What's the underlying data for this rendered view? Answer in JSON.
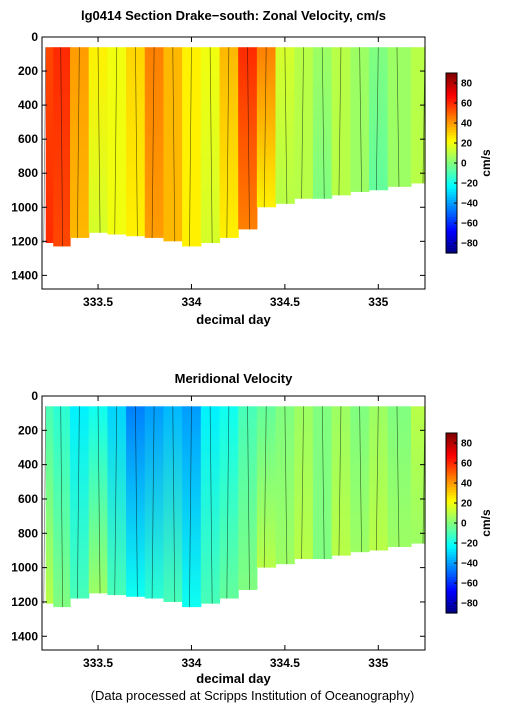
{
  "chart_data": [
    {
      "type": "heatmap",
      "title": "lg0414 Section Drake−south: Zonal Velocity, cm/s",
      "xlabel": "decimal day",
      "ylabel": "",
      "x_range": [
        333.2,
        335.25
      ],
      "y_range": [
        0,
        1480
      ],
      "y_reversed": true,
      "xticks": [
        "333.5",
        "334",
        "334.5",
        "335"
      ],
      "xtick_values": [
        333.5,
        334,
        334.5,
        335
      ],
      "yticks": [
        "0",
        "200",
        "400",
        "600",
        "800",
        "1000",
        "1200",
        "1400"
      ],
      "ytick_values": [
        0,
        200,
        400,
        600,
        800,
        1000,
        1200,
        1400
      ],
      "colorbar": {
        "label": "cm/s",
        "range": [
          -90,
          90
        ],
        "ticks": [
          "80",
          "60",
          "40",
          "20",
          "0",
          "−20",
          "−40",
          "−60",
          "−80"
        ],
        "tick_values": [
          80,
          60,
          40,
          20,
          0,
          -20,
          -40,
          -60,
          -80
        ]
      },
      "profiles_x": [
        333.22,
        333.3,
        333.4,
        333.5,
        333.6,
        333.7,
        333.8,
        333.9,
        334.0,
        334.1,
        334.2,
        334.3,
        334.4,
        334.5,
        334.6,
        334.7,
        334.8,
        334.9,
        335.0,
        335.1,
        335.25
      ],
      "bottom_depth": [
        1210,
        1230,
        1180,
        1150,
        1160,
        1170,
        1180,
        1200,
        1230,
        1210,
        1180,
        1130,
        1000,
        980,
        950,
        950,
        930,
        910,
        900,
        880,
        860
      ],
      "values_100m": [
        55,
        60,
        40,
        25,
        20,
        30,
        45,
        35,
        25,
        20,
        35,
        60,
        45,
        15,
        10,
        5,
        10,
        5,
        0,
        5,
        10
      ],
      "values_1000m": [
        60,
        55,
        35,
        15,
        20,
        25,
        40,
        35,
        25,
        15,
        25,
        45,
        25,
        10,
        10,
        0,
        10,
        5,
        -5,
        5,
        10
      ]
    },
    {
      "type": "heatmap",
      "title": "Meridional Velocity",
      "xlabel": "decimal day",
      "ylabel": "",
      "x_range": [
        333.2,
        335.25
      ],
      "y_range": [
        0,
        1480
      ],
      "y_reversed": true,
      "xticks": [
        "333.5",
        "334",
        "334.5",
        "335"
      ],
      "xtick_values": [
        333.5,
        334,
        334.5,
        335
      ],
      "yticks": [
        "0",
        "200",
        "400",
        "600",
        "800",
        "1000",
        "1200",
        "1400"
      ],
      "ytick_values": [
        0,
        200,
        400,
        600,
        800,
        1000,
        1200,
        1400
      ],
      "colorbar": {
        "label": "cm/s",
        "range": [
          -90,
          90
        ],
        "ticks": [
          "80",
          "60",
          "40",
          "20",
          "0",
          "−20",
          "−40",
          "−60",
          "−80"
        ],
        "tick_values": [
          80,
          60,
          40,
          20,
          0,
          -20,
          -40,
          -60,
          -80
        ]
      },
      "profiles_x": [
        333.22,
        333.3,
        333.4,
        333.5,
        333.6,
        333.7,
        333.8,
        333.9,
        334.0,
        334.1,
        334.2,
        334.3,
        334.4,
        334.5,
        334.6,
        334.7,
        334.8,
        334.9,
        335.0,
        335.1,
        335.25
      ],
      "bottom_depth": [
        1210,
        1230,
        1180,
        1150,
        1160,
        1170,
        1180,
        1200,
        1230,
        1210,
        1180,
        1130,
        1000,
        980,
        950,
        950,
        930,
        910,
        900,
        880,
        860
      ],
      "values_100m": [
        -10,
        -15,
        -25,
        -20,
        -30,
        -45,
        -40,
        -35,
        -40,
        -25,
        -20,
        -10,
        -5,
        0,
        5,
        0,
        5,
        0,
        5,
        0,
        10
      ],
      "values_1000m": [
        10,
        0,
        -10,
        5,
        -10,
        -20,
        -15,
        -10,
        -20,
        -10,
        -5,
        0,
        10,
        5,
        10,
        0,
        10,
        5,
        10,
        5,
        5
      ]
    }
  ],
  "footer": "(Data processed at Scripps Institution of Oceanography)"
}
